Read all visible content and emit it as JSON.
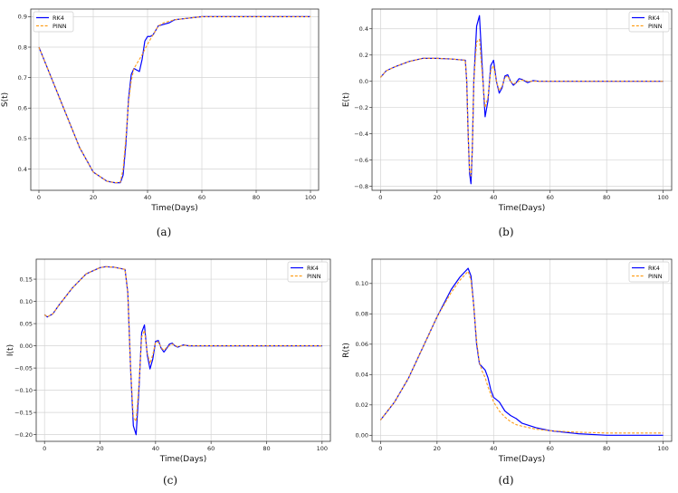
{
  "colors": {
    "rk4": "#0000ff",
    "pinn": "#ff9f1c"
  },
  "chart_data": [
    {
      "type": "line",
      "ylabel": "S(t)",
      "xlabel": "Time(Days)",
      "caption": "(a)",
      "xlim": [
        -3,
        103
      ],
      "ylim": [
        0.33,
        0.925
      ],
      "xticks": [
        0,
        20,
        40,
        60,
        80,
        100
      ],
      "yticks": [
        0.4,
        0.5,
        0.6,
        0.7,
        0.8,
        0.9
      ],
      "ytick_labels": [
        "0.4",
        "0.5",
        "0.6",
        "0.7",
        "0.8",
        "0.9"
      ],
      "grid": true,
      "legend_position": "top-left",
      "series": [
        {
          "name": "RK4",
          "style": "solid",
          "x": [
            0,
            5,
            10,
            15,
            20,
            25,
            28,
            30,
            31,
            32,
            33,
            34,
            35,
            36,
            37,
            38,
            39,
            40,
            41,
            42,
            43,
            44,
            46,
            48,
            50,
            55,
            60,
            70,
            80,
            100
          ],
          "y": [
            0.8,
            0.69,
            0.58,
            0.47,
            0.39,
            0.36,
            0.355,
            0.355,
            0.38,
            0.48,
            0.63,
            0.71,
            0.73,
            0.725,
            0.72,
            0.76,
            0.82,
            0.835,
            0.835,
            0.84,
            0.855,
            0.87,
            0.875,
            0.88,
            0.89,
            0.895,
            0.9,
            0.9,
            0.9,
            0.9
          ]
        },
        {
          "name": "PINN",
          "style": "dashed",
          "x": [
            0,
            5,
            10,
            15,
            20,
            25,
            28,
            30,
            31,
            32,
            33,
            34,
            35,
            36,
            38,
            40,
            42,
            44,
            46,
            48,
            50,
            55,
            60,
            70,
            80,
            100
          ],
          "y": [
            0.8,
            0.69,
            0.58,
            0.47,
            0.39,
            0.36,
            0.355,
            0.357,
            0.4,
            0.5,
            0.62,
            0.69,
            0.73,
            0.745,
            0.775,
            0.81,
            0.84,
            0.87,
            0.88,
            0.885,
            0.89,
            0.895,
            0.9,
            0.9,
            0.9,
            0.9
          ]
        }
      ]
    },
    {
      "type": "line",
      "ylabel": "E(t)",
      "xlabel": "Time(Days)",
      "caption": "(b)",
      "xlim": [
        -3,
        103
      ],
      "ylim": [
        -0.83,
        0.55
      ],
      "xticks": [
        0,
        20,
        40,
        60,
        80,
        100
      ],
      "yticks": [
        -0.8,
        -0.6,
        -0.4,
        -0.2,
        0.0,
        0.2,
        0.4
      ],
      "ytick_labels": [
        "−0.8",
        "−0.6",
        "−0.4",
        "−0.2",
        "0.0",
        "0.2",
        "0.4"
      ],
      "grid": true,
      "legend_position": "top-right",
      "series": [
        {
          "name": "RK4",
          "style": "solid",
          "x": [
            0,
            2,
            5,
            10,
            15,
            20,
            25,
            30,
            30.5,
            31,
            31.5,
            32,
            32.5,
            33,
            34,
            35,
            36,
            37,
            38,
            39,
            40,
            41,
            42,
            43,
            44,
            45,
            46,
            47,
            48,
            49,
            50,
            52,
            54,
            56,
            60,
            80,
            100
          ],
          "y": [
            0.03,
            0.08,
            0.11,
            0.15,
            0.175,
            0.175,
            0.17,
            0.16,
            0.0,
            -0.4,
            -0.7,
            -0.78,
            -0.5,
            0.0,
            0.42,
            0.5,
            0.1,
            -0.27,
            -0.15,
            0.12,
            0.16,
            0.0,
            -0.09,
            -0.05,
            0.04,
            0.05,
            0.0,
            -0.03,
            -0.01,
            0.02,
            0.015,
            -0.01,
            0.005,
            0.0,
            0.0,
            0.0,
            0.0
          ]
        },
        {
          "name": "PINN",
          "style": "dashed",
          "x": [
            0,
            2,
            5,
            10,
            15,
            20,
            25,
            30,
            30.5,
            31,
            31.5,
            32,
            32.5,
            33,
            34,
            35,
            36,
            37,
            38,
            39,
            40,
            41,
            42,
            43,
            44,
            45,
            46,
            47,
            48,
            50,
            52,
            56,
            60,
            80,
            100
          ],
          "y": [
            0.03,
            0.08,
            0.11,
            0.15,
            0.175,
            0.175,
            0.17,
            0.16,
            0.0,
            -0.4,
            -0.68,
            -0.72,
            -0.5,
            0.0,
            0.3,
            0.32,
            0.05,
            -0.2,
            -0.12,
            0.08,
            0.12,
            0.0,
            -0.07,
            -0.04,
            0.03,
            0.04,
            0.0,
            -0.02,
            -0.01,
            0.01,
            0.0,
            0.0,
            0.0,
            0.0,
            0.0
          ]
        }
      ]
    },
    {
      "type": "line",
      "ylabel": "I(t)",
      "xlabel": "Time(Days)",
      "caption": "(c)",
      "xlim": [
        -3,
        103
      ],
      "ylim": [
        -0.215,
        0.195
      ],
      "xticks": [
        0,
        20,
        40,
        60,
        80,
        100
      ],
      "yticks": [
        -0.2,
        -0.15,
        -0.1,
        -0.05,
        0.0,
        0.05,
        0.1,
        0.15
      ],
      "ytick_labels": [
        "−0.20",
        "−0.15",
        "−0.10",
        "−0.05",
        "0.00",
        "0.05",
        "0.10",
        "0.15"
      ],
      "grid": true,
      "legend_position": "top-right",
      "series": [
        {
          "name": "RK4",
          "style": "solid",
          "x": [
            0,
            1,
            3,
            5,
            10,
            15,
            20,
            22,
            25,
            29,
            30,
            31,
            32,
            33,
            34,
            35,
            36,
            37,
            38,
            39,
            40,
            41,
            42,
            43,
            44,
            45,
            46,
            47,
            48,
            50,
            52,
            55,
            60,
            80,
            100
          ],
          "y": [
            0.07,
            0.065,
            0.072,
            0.09,
            0.13,
            0.162,
            0.176,
            0.178,
            0.177,
            0.172,
            0.12,
            -0.05,
            -0.18,
            -0.2,
            -0.1,
            0.03,
            0.047,
            -0.02,
            -0.052,
            -0.03,
            0.01,
            0.012,
            -0.005,
            -0.014,
            -0.006,
            0.004,
            0.006,
            0.0,
            -0.003,
            0.002,
            0.0,
            0.0,
            0.0,
            0.0,
            0.0
          ]
        },
        {
          "name": "PINN",
          "style": "dashed",
          "x": [
            0,
            1,
            3,
            5,
            10,
            15,
            20,
            22,
            25,
            29,
            30,
            31,
            32,
            33,
            34,
            35,
            36,
            37,
            38,
            39,
            40,
            41,
            42,
            43,
            44,
            46,
            48,
            50,
            55,
            60,
            80,
            100
          ],
          "y": [
            0.07,
            0.065,
            0.072,
            0.09,
            0.13,
            0.162,
            0.176,
            0.178,
            0.177,
            0.172,
            0.12,
            -0.05,
            -0.16,
            -0.17,
            -0.09,
            0.02,
            0.035,
            -0.015,
            -0.04,
            -0.02,
            0.008,
            0.009,
            -0.004,
            -0.01,
            -0.004,
            0.004,
            -0.002,
            0.001,
            0.0,
            0.0,
            0.0,
            0.0
          ]
        }
      ]
    },
    {
      "type": "line",
      "ylabel": "R(t)",
      "xlabel": "Time(Days)",
      "caption": "(d)",
      "xlim": [
        -3,
        103
      ],
      "ylim": [
        -0.004,
        0.116
      ],
      "xticks": [
        0,
        20,
        40,
        60,
        80,
        100
      ],
      "yticks": [
        0.0,
        0.02,
        0.04,
        0.06,
        0.08,
        0.1
      ],
      "ytick_labels": [
        "0.00",
        "0.02",
        "0.04",
        "0.06",
        "0.08",
        "0.10"
      ],
      "grid": true,
      "legend_position": "top-right",
      "series": [
        {
          "name": "RK4",
          "style": "solid",
          "x": [
            0,
            5,
            10,
            15,
            20,
            25,
            28,
            30,
            31,
            32,
            33,
            34,
            35,
            36,
            37,
            38,
            39,
            40,
            42,
            44,
            46,
            48,
            50,
            55,
            60,
            70,
            80,
            100
          ],
          "y": [
            0.01,
            0.022,
            0.038,
            0.058,
            0.078,
            0.096,
            0.104,
            0.108,
            0.11,
            0.105,
            0.085,
            0.06,
            0.047,
            0.045,
            0.043,
            0.038,
            0.03,
            0.025,
            0.022,
            0.016,
            0.013,
            0.011,
            0.008,
            0.005,
            0.003,
            0.001,
            0.0,
            0.0
          ]
        },
        {
          "name": "PINN",
          "style": "dashed",
          "x": [
            0,
            5,
            10,
            15,
            20,
            25,
            28,
            30,
            31,
            32,
            33,
            34,
            35,
            36,
            37,
            38,
            39,
            40,
            42,
            44,
            46,
            48,
            50,
            55,
            60,
            70,
            80,
            100
          ],
          "y": [
            0.01,
            0.022,
            0.038,
            0.058,
            0.078,
            0.094,
            0.102,
            0.106,
            0.108,
            0.102,
            0.085,
            0.062,
            0.048,
            0.042,
            0.038,
            0.032,
            0.027,
            0.022,
            0.016,
            0.012,
            0.009,
            0.007,
            0.006,
            0.004,
            0.003,
            0.002,
            0.0015,
            0.0015
          ]
        }
      ]
    }
  ]
}
